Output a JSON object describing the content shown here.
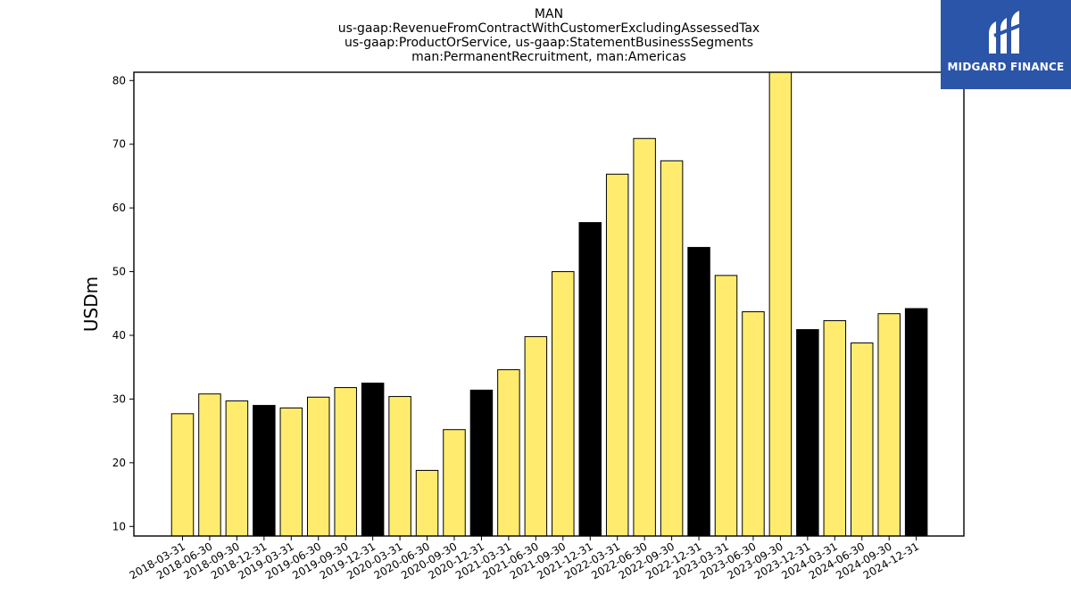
{
  "chart_data": {
    "type": "bar",
    "title_lines": [
      "MAN",
      "us-gaap:RevenueFromContractWithCustomerExcludingAssessedTax",
      "us-gaap:ProductOrService, us-gaap:StatementBusinessSegments",
      "man:PermanentRecruitment, man:Americas"
    ],
    "ylabel": "USDm",
    "xlabel": "",
    "ylim": [
      8.5,
      81.3
    ],
    "yticks": [
      10,
      20,
      30,
      40,
      50,
      60,
      70,
      80
    ],
    "grid": false,
    "categories": [
      "2018-03-31",
      "2018-06-30",
      "2018-09-30",
      "2018-12-31",
      "2019-03-31",
      "2019-06-30",
      "2019-09-30",
      "2019-12-31",
      "2020-03-31",
      "2020-06-30",
      "2020-09-30",
      "2020-12-31",
      "2021-03-31",
      "2021-06-30",
      "2021-09-30",
      "2021-12-31",
      "2022-03-31",
      "2022-06-30",
      "2022-09-30",
      "2022-12-31",
      "2023-03-31",
      "2023-06-30",
      "2023-09-30",
      "2023-12-31",
      "2024-03-31",
      "2024-06-30",
      "2024-09-30",
      "2024-12-31"
    ],
    "values": [
      27.7,
      30.8,
      29.7,
      29.0,
      28.6,
      30.3,
      31.8,
      32.5,
      30.4,
      18.8,
      25.2,
      31.4,
      34.6,
      39.8,
      50.0,
      57.7,
      65.3,
      70.9,
      67.4,
      53.8,
      49.4,
      43.7,
      81.3,
      40.9,
      42.3,
      38.8,
      43.4,
      44.2
    ],
    "bar_colors": [
      "#ffec6e",
      "#ffec6e",
      "#ffec6e",
      "#000000",
      "#ffec6e",
      "#ffec6e",
      "#ffec6e",
      "#000000",
      "#ffec6e",
      "#ffec6e",
      "#ffec6e",
      "#000000",
      "#ffec6e",
      "#ffec6e",
      "#ffec6e",
      "#000000",
      "#ffec6e",
      "#ffec6e",
      "#ffec6e",
      "#000000",
      "#ffec6e",
      "#ffec6e",
      "#ffec6e",
      "#000000",
      "#ffec6e",
      "#ffec6e",
      "#ffec6e",
      "#000000"
    ]
  },
  "logo": {
    "text": "MIDGARD FINANCE",
    "background": "#2b55a8"
  }
}
